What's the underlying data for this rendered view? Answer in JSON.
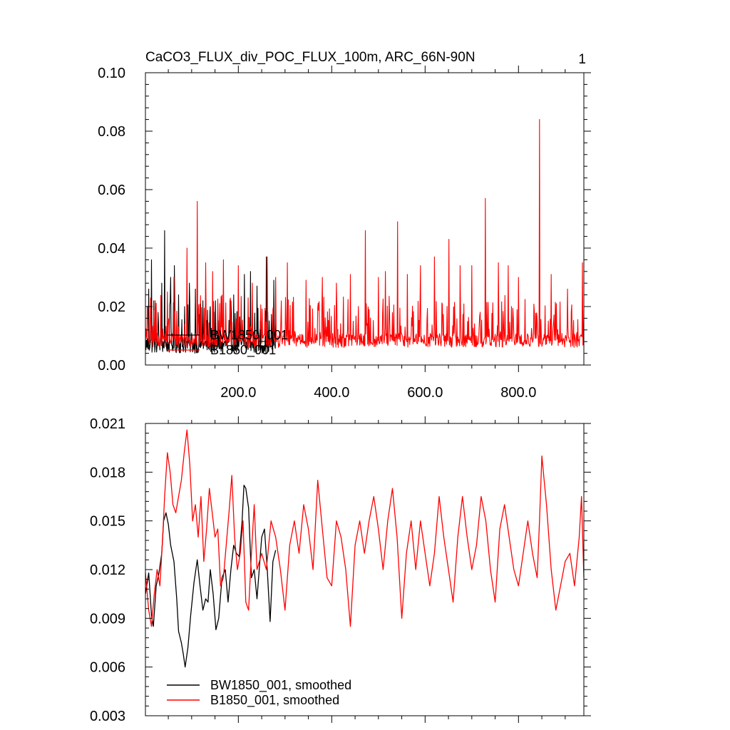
{
  "colors": {
    "series_1": "#000000",
    "series_2": "#ff0000",
    "axis": "#000000",
    "background": "#ffffff"
  },
  "chart_data": [
    {
      "type": "line",
      "title": "CaCO3_FLUX_div_POC_FLUX_100m, ARC_66N-90N",
      "corner_label": "1",
      "xlabel": "",
      "ylabel": "",
      "xlim": [
        1,
        940
      ],
      "ylim": [
        0.0,
        0.1
      ],
      "x_ticks": [
        200,
        400,
        600,
        800
      ],
      "x_tick_labels": [
        "200.0",
        "400.0",
        "600.0",
        "800.0"
      ],
      "y_ticks": [
        0.0,
        0.02,
        0.04,
        0.06,
        0.08,
        0.1
      ],
      "y_tick_labels": [
        "0.00",
        "0.02",
        "0.04",
        "0.06",
        "0.08",
        "0.10"
      ],
      "grid": false,
      "legend_position": "bottom-left",
      "series": [
        {
          "name": "BW1850_001",
          "color": "#000000",
          "x_range": [
            1,
            280
          ],
          "baseline": 0.007,
          "spikes": [
            [
              8,
              0.026
            ],
            [
              14,
              0.036
            ],
            [
              19,
              0.022
            ],
            [
              28,
              0.018
            ],
            [
              36,
              0.028
            ],
            [
              42,
              0.046
            ],
            [
              55,
              0.03
            ],
            [
              63,
              0.034
            ],
            [
              72,
              0.024
            ],
            [
              85,
              0.02
            ],
            [
              95,
              0.028
            ],
            [
              108,
              0.026
            ],
            [
              124,
              0.022
            ],
            [
              140,
              0.02
            ],
            [
              160,
              0.018
            ],
            [
              190,
              0.024
            ],
            [
              213,
              0.031
            ],
            [
              226,
              0.032
            ],
            [
              240,
              0.027
            ],
            [
              260,
              0.037
            ],
            [
              276,
              0.029
            ]
          ]
        },
        {
          "name": "B1850_001",
          "color": "#ff0000",
          "x_range": [
            1,
            940
          ],
          "baseline": 0.009,
          "spikes": [
            [
              5,
              0.02
            ],
            [
              22,
              0.022
            ],
            [
              48,
              0.025
            ],
            [
              62,
              0.03
            ],
            [
              90,
              0.04
            ],
            [
              112,
              0.056
            ],
            [
              130,
              0.035
            ],
            [
              145,
              0.032
            ],
            [
              168,
              0.036
            ],
            [
              200,
              0.034
            ],
            [
              230,
              0.028
            ],
            [
              262,
              0.037
            ],
            [
              280,
              0.03
            ],
            [
              305,
              0.035
            ],
            [
              345,
              0.029
            ],
            [
              380,
              0.03
            ],
            [
              410,
              0.028
            ],
            [
              440,
              0.031
            ],
            [
              472,
              0.046
            ],
            [
              500,
              0.03
            ],
            [
              515,
              0.032
            ],
            [
              541,
              0.049
            ],
            [
              562,
              0.031
            ],
            [
              590,
              0.034
            ],
            [
              620,
              0.037
            ],
            [
              651,
              0.043
            ],
            [
              675,
              0.034
            ],
            [
              700,
              0.034
            ],
            [
              729,
              0.057
            ],
            [
              757,
              0.035
            ],
            [
              778,
              0.034
            ],
            [
              800,
              0.03
            ],
            [
              845,
              0.084
            ],
            [
              870,
              0.031
            ],
            [
              905,
              0.026
            ],
            [
              937,
              0.035
            ]
          ]
        }
      ]
    },
    {
      "type": "line",
      "title": "",
      "xlabel": "",
      "ylabel": "",
      "xlim": [
        1,
        940
      ],
      "ylim": [
        0.003,
        0.021
      ],
      "y_ticks": [
        0.003,
        0.006,
        0.009,
        0.012,
        0.015,
        0.018,
        0.021
      ],
      "y_tick_labels": [
        "0.003",
        "0.006",
        "0.009",
        "0.012",
        "0.015",
        "0.018",
        "0.021"
      ],
      "grid": false,
      "legend_position": "bottom-left",
      "series": [
        {
          "name": "BW1850_001, smoothed",
          "color": "#000000",
          "x": [
            1,
            8,
            14,
            18,
            24,
            30,
            36,
            40,
            45,
            50,
            55,
            62,
            68,
            72,
            78,
            82,
            86,
            92,
            98,
            105,
            112,
            118,
            124,
            130,
            135,
            140,
            146,
            152,
            158,
            165,
            172,
            178,
            184,
            190,
            196,
            202,
            208,
            212,
            216,
            222,
            228,
            234,
            240,
            246,
            250,
            256,
            262,
            268,
            274,
            280
          ],
          "y": [
            0.0105,
            0.0118,
            0.0092,
            0.0085,
            0.011,
            0.0118,
            0.013,
            0.015,
            0.0155,
            0.0148,
            0.0135,
            0.0125,
            0.0102,
            0.0082,
            0.0075,
            0.0068,
            0.006,
            0.0072,
            0.0092,
            0.0112,
            0.0126,
            0.011,
            0.0095,
            0.0102,
            0.01,
            0.012,
            0.0105,
            0.0083,
            0.009,
            0.0115,
            0.012,
            0.01,
            0.012,
            0.0135,
            0.013,
            0.0128,
            0.015,
            0.0172,
            0.017,
            0.0158,
            0.0115,
            0.012,
            0.0102,
            0.0125,
            0.014,
            0.0145,
            0.012,
            0.0088,
            0.0125,
            0.0132
          ]
        },
        {
          "name": "B1850_001, smoothed",
          "color": "#ff0000",
          "x": [
            1,
            8,
            14,
            20,
            26,
            32,
            38,
            42,
            48,
            54,
            60,
            66,
            72,
            78,
            84,
            90,
            96,
            102,
            108,
            114,
            120,
            126,
            132,
            138,
            144,
            150,
            156,
            162,
            168,
            174,
            180,
            186,
            192,
            198,
            204,
            210,
            216,
            222,
            228,
            234,
            240,
            250,
            260,
            270,
            280,
            290,
            300,
            310,
            320,
            330,
            340,
            350,
            360,
            370,
            380,
            390,
            400,
            410,
            420,
            430,
            440,
            450,
            460,
            470,
            480,
            490,
            500,
            510,
            520,
            530,
            540,
            550,
            560,
            570,
            580,
            590,
            600,
            610,
            620,
            630,
            640,
            650,
            660,
            670,
            680,
            690,
            700,
            710,
            720,
            730,
            740,
            750,
            760,
            770,
            780,
            790,
            800,
            810,
            820,
            830,
            840,
            845,
            850,
            855,
            860,
            870,
            880,
            890,
            900,
            910,
            920,
            930,
            935,
            940
          ],
          "y": [
            0.0118,
            0.0095,
            0.0085,
            0.0105,
            0.012,
            0.011,
            0.014,
            0.0165,
            0.0192,
            0.018,
            0.016,
            0.0155,
            0.0165,
            0.0175,
            0.0192,
            0.0206,
            0.0185,
            0.015,
            0.016,
            0.014,
            0.0165,
            0.0125,
            0.0145,
            0.017,
            0.0155,
            0.014,
            0.0145,
            0.011,
            0.0115,
            0.0135,
            0.0155,
            0.0178,
            0.014,
            0.012,
            0.013,
            0.015,
            0.01,
            0.0095,
            0.013,
            0.016,
            0.012,
            0.013,
            0.012,
            0.015,
            0.014,
            0.012,
            0.0095,
            0.0135,
            0.015,
            0.013,
            0.016,
            0.0145,
            0.012,
            0.0175,
            0.0145,
            0.0115,
            0.011,
            0.015,
            0.014,
            0.012,
            0.0085,
            0.0135,
            0.015,
            0.013,
            0.015,
            0.0165,
            0.0145,
            0.012,
            0.015,
            0.017,
            0.014,
            0.009,
            0.013,
            0.015,
            0.012,
            0.015,
            0.013,
            0.011,
            0.013,
            0.0165,
            0.014,
            0.012,
            0.01,
            0.014,
            0.0165,
            0.014,
            0.012,
            0.0135,
            0.0165,
            0.015,
            0.012,
            0.01,
            0.0145,
            0.016,
            0.014,
            0.012,
            0.011,
            0.013,
            0.015,
            0.013,
            0.0115,
            0.015,
            0.019,
            0.0175,
            0.016,
            0.012,
            0.0095,
            0.011,
            0.0125,
            0.013,
            0.011,
            0.014,
            0.0165,
            0.0115
          ]
        }
      ]
    }
  ]
}
